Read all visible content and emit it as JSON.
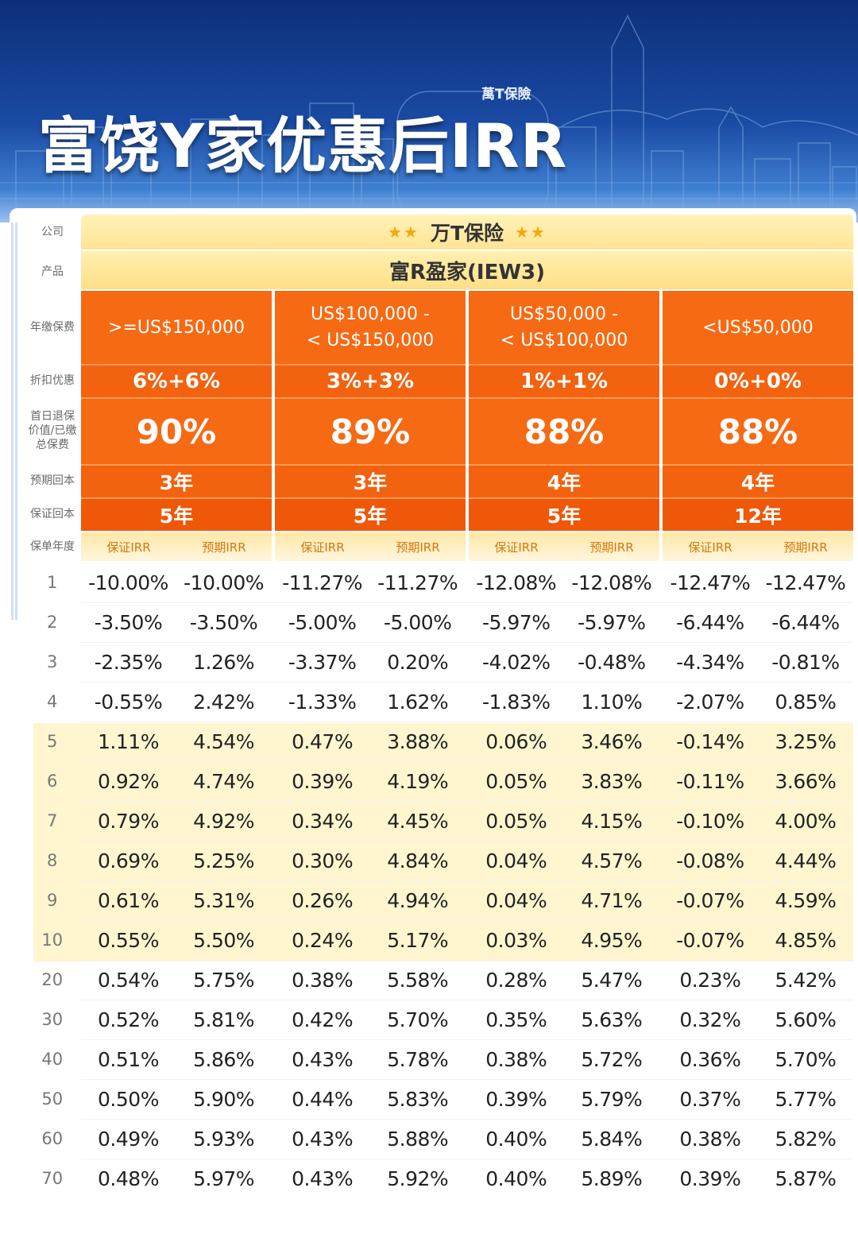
{
  "header": {
    "title": "富饶Y家优惠后IRR",
    "building_sign": "萬T保險"
  },
  "labels": {
    "company": "公司",
    "product": "产品",
    "annual_premium": "年缴保费",
    "discount": "折扣优惠",
    "first_day_value": "首日退保价值/已缴总保费",
    "expected_breakeven": "预期回本",
    "guaranteed_breakeven": "保证回本",
    "policy_year": "保单年度"
  },
  "company_name": "万T保险",
  "product_name": "富R盈家(IEW3)",
  "tiers": [
    {
      "premium_line1": ">=US$150,000",
      "premium_line2": "",
      "discount": "6%+6%",
      "first_day_value": "90%",
      "expected_breakeven": "3年",
      "guaranteed_breakeven": "5年",
      "guaranteed_label": "保证IRR",
      "expected_label": "预期IRR"
    },
    {
      "premium_line1": "US$100,000 -",
      "premium_line2": "< US$150,000",
      "discount": "3%+3%",
      "first_day_value": "89%",
      "expected_breakeven": "3年",
      "guaranteed_breakeven": "5年",
      "guaranteed_label": "保证IRR",
      "expected_label": "预期IRR"
    },
    {
      "premium_line1": "US$50,000 -",
      "premium_line2": "< US$100,000",
      "discount": "1%+1%",
      "first_day_value": "88%",
      "expected_breakeven": "4年",
      "guaranteed_breakeven": "5年",
      "guaranteed_label": "保证IRR",
      "expected_label": "预期IRR"
    },
    {
      "premium_line1": "<US$50,000",
      "premium_line2": "",
      "discount": "0%+0%",
      "first_day_value": "88%",
      "expected_breakeven": "4年",
      "guaranteed_breakeven": "12年",
      "guaranteed_label": "保证IRR",
      "expected_label": "预期IRR"
    }
  ],
  "rows": [
    {
      "year": "1",
      "values": [
        "-10.00%",
        "-10.00%",
        "-11.27%",
        "-11.27%",
        "-12.08%",
        "-12.08%",
        "-12.47%",
        "-12.47%"
      ]
    },
    {
      "year": "2",
      "values": [
        "-3.50%",
        "-3.50%",
        "-5.00%",
        "-5.00%",
        "-5.97%",
        "-5.97%",
        "-6.44%",
        "-6.44%"
      ]
    },
    {
      "year": "3",
      "values": [
        "-2.35%",
        "1.26%",
        "-3.37%",
        "0.20%",
        "-4.02%",
        "-0.48%",
        "-4.34%",
        "-0.81%"
      ]
    },
    {
      "year": "4",
      "values": [
        "-0.55%",
        "2.42%",
        "-1.33%",
        "1.62%",
        "-1.83%",
        "1.10%",
        "-2.07%",
        "0.85%"
      ]
    },
    {
      "year": "5",
      "values": [
        "1.11%",
        "4.54%",
        "0.47%",
        "3.88%",
        "0.06%",
        "3.46%",
        "-0.14%",
        "3.25%"
      ]
    },
    {
      "year": "6",
      "values": [
        "0.92%",
        "4.74%",
        "0.39%",
        "4.19%",
        "0.05%",
        "3.83%",
        "-0.11%",
        "3.66%"
      ]
    },
    {
      "year": "7",
      "values": [
        "0.79%",
        "4.92%",
        "0.34%",
        "4.45%",
        "0.05%",
        "4.15%",
        "-0.10%",
        "4.00%"
      ]
    },
    {
      "year": "8",
      "values": [
        "0.69%",
        "5.25%",
        "0.30%",
        "4.84%",
        "0.04%",
        "4.57%",
        "-0.08%",
        "4.44%"
      ]
    },
    {
      "year": "9",
      "values": [
        "0.61%",
        "5.31%",
        "0.26%",
        "4.94%",
        "0.04%",
        "4.71%",
        "-0.07%",
        "4.59%"
      ]
    },
    {
      "year": "10",
      "values": [
        "0.55%",
        "5.50%",
        "0.24%",
        "5.17%",
        "0.03%",
        "4.95%",
        "-0.07%",
        "4.85%"
      ]
    },
    {
      "year": "20",
      "values": [
        "0.54%",
        "5.75%",
        "0.38%",
        "5.58%",
        "0.28%",
        "5.47%",
        "0.23%",
        "5.42%"
      ]
    },
    {
      "year": "30",
      "values": [
        "0.52%",
        "5.81%",
        "0.42%",
        "5.70%",
        "0.35%",
        "5.63%",
        "0.32%",
        "5.60%"
      ]
    },
    {
      "year": "40",
      "values": [
        "0.51%",
        "5.86%",
        "0.43%",
        "5.78%",
        "0.38%",
        "5.72%",
        "0.36%",
        "5.70%"
      ]
    },
    {
      "year": "50",
      "values": [
        "0.50%",
        "5.90%",
        "0.44%",
        "5.83%",
        "0.39%",
        "5.79%",
        "0.37%",
        "5.77%"
      ]
    },
    {
      "year": "60",
      "values": [
        "0.49%",
        "5.93%",
        "0.43%",
        "5.88%",
        "0.40%",
        "5.84%",
        "0.38%",
        "5.82%"
      ]
    },
    {
      "year": "70",
      "values": [
        "0.48%",
        "5.97%",
        "0.43%",
        "5.92%",
        "0.40%",
        "5.89%",
        "0.39%",
        "5.87%"
      ]
    }
  ],
  "colors": {
    "accent_orange": "#f2620f",
    "header_blue": "#1a4aa3",
    "band_yellow": "#fff6cf",
    "company_bar": "#ffe494"
  }
}
